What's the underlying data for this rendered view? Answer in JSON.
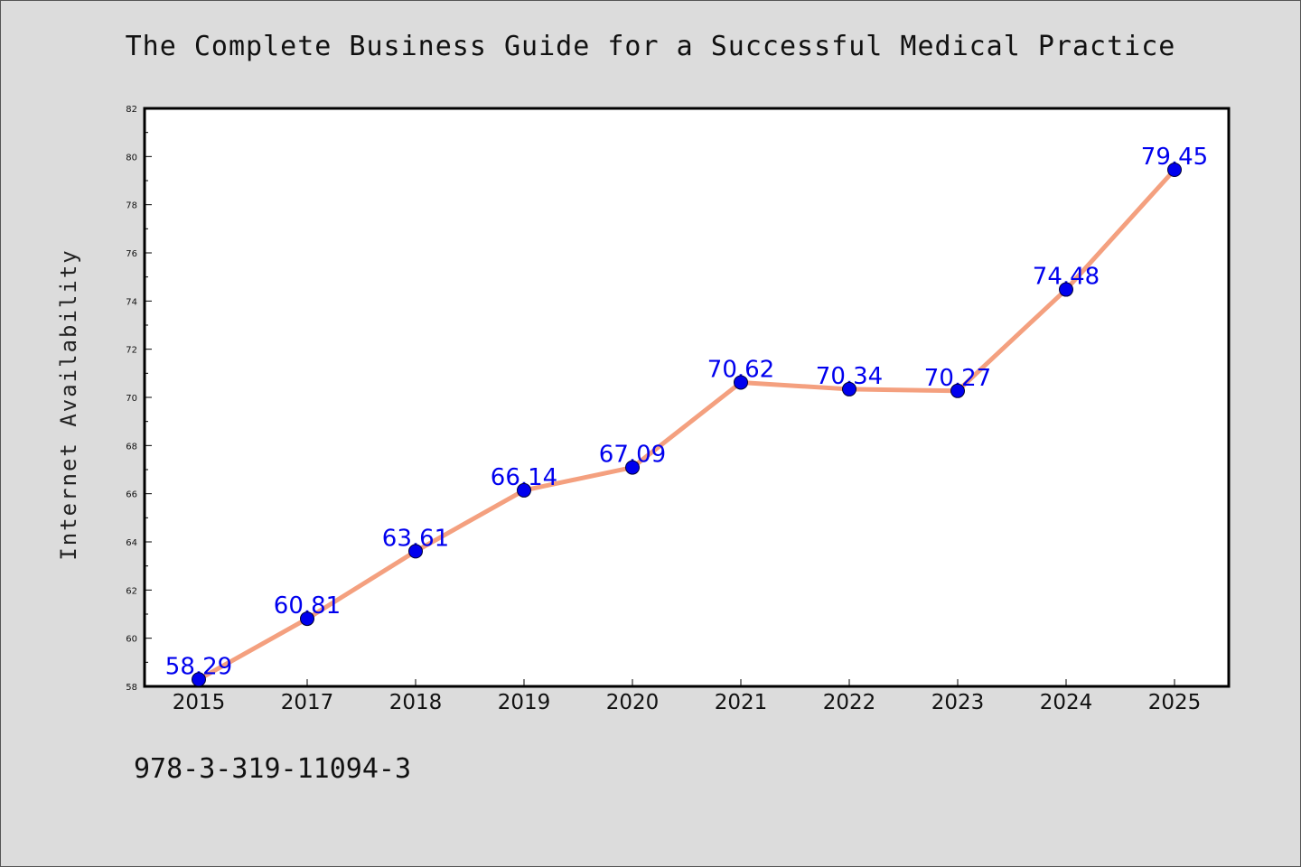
{
  "chart_data": {
    "type": "line",
    "title": "The Complete Business Guide for a Successful Medical Practice",
    "ylabel": "Internet Availability",
    "xlabel": "",
    "categories": [
      "2015",
      "2017",
      "2018",
      "2019",
      "2020",
      "2021",
      "2022",
      "2023",
      "2024",
      "2025"
    ],
    "series": [
      {
        "values": [
          58.29,
          60.81,
          63.61,
          66.14,
          67.09,
          70.62,
          70.34,
          70.27,
          74.48,
          79.45
        ],
        "labels": [
          "58.29",
          "60.81",
          "63.61",
          "66.14",
          "67.09",
          "70.62",
          "70.34",
          "70.27",
          "74.48",
          "79.45"
        ],
        "line_color": "#f4a07f",
        "marker_color": "#0000ee"
      }
    ],
    "ylim": [
      58,
      82
    ],
    "yticks": [
      "58",
      "60",
      "62",
      "64",
      "66",
      "68",
      "70",
      "72",
      "74",
      "76",
      "78",
      "80",
      "82"
    ],
    "grid": false,
    "legend": "none"
  },
  "footer": {
    "isbn": "978-3-319-11094-3"
  },
  "colors": {
    "background": "#dcdcdc",
    "plot_background": "#ffffff"
  }
}
